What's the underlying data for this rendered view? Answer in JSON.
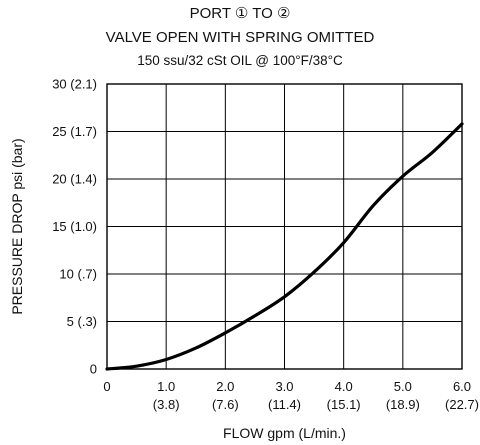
{
  "chart_data": {
    "type": "line",
    "title": "PORT ① TO ②",
    "subtitle": "VALVE OPEN WITH SPRING OMITTED",
    "subtitle2": "150 ssu/32 cSt OIL @ 100°F/38°C",
    "xlabel": "FLOW gpm (L/min.)",
    "ylabel": "PRESSURE DROP psi (bar)",
    "xlim": [
      0,
      6.0
    ],
    "ylim": [
      0,
      30
    ],
    "x_ticks": [
      {
        "value": 0,
        "label": "0",
        "sublabel": ""
      },
      {
        "value": 1,
        "label": "1.0",
        "sublabel": "(3.8)"
      },
      {
        "value": 2,
        "label": "2.0",
        "sublabel": "(7.6)"
      },
      {
        "value": 3,
        "label": "3.0",
        "sublabel": "(11.4)"
      },
      {
        "value": 4,
        "label": "4.0",
        "sublabel": "(15.1)"
      },
      {
        "value": 5,
        "label": "5.0",
        "sublabel": "(18.9)"
      },
      {
        "value": 6,
        "label": "6.0",
        "sublabel": "(22.7)"
      }
    ],
    "y_ticks": [
      {
        "value": 0,
        "label": "0"
      },
      {
        "value": 5,
        "label": "5 (.3)"
      },
      {
        "value": 10,
        "label": "10 (.7)"
      },
      {
        "value": 15,
        "label": "15 (1.0)"
      },
      {
        "value": 20,
        "label": "20 (1.4)"
      },
      {
        "value": 25,
        "label": "25 (1.7)"
      },
      {
        "value": 30,
        "label": "30 (2.1)"
      }
    ],
    "grid": true,
    "series": [
      {
        "color": "#000000",
        "x": [
          0,
          0.5,
          1.0,
          1.5,
          2.0,
          2.5,
          3.0,
          3.5,
          4.0,
          4.5,
          5.0,
          5.5,
          6.0
        ],
        "y": [
          0,
          0.3,
          1.0,
          2.2,
          3.8,
          5.6,
          7.6,
          10.2,
          13.3,
          17.2,
          20.3,
          22.8,
          25.8
        ]
      }
    ]
  }
}
